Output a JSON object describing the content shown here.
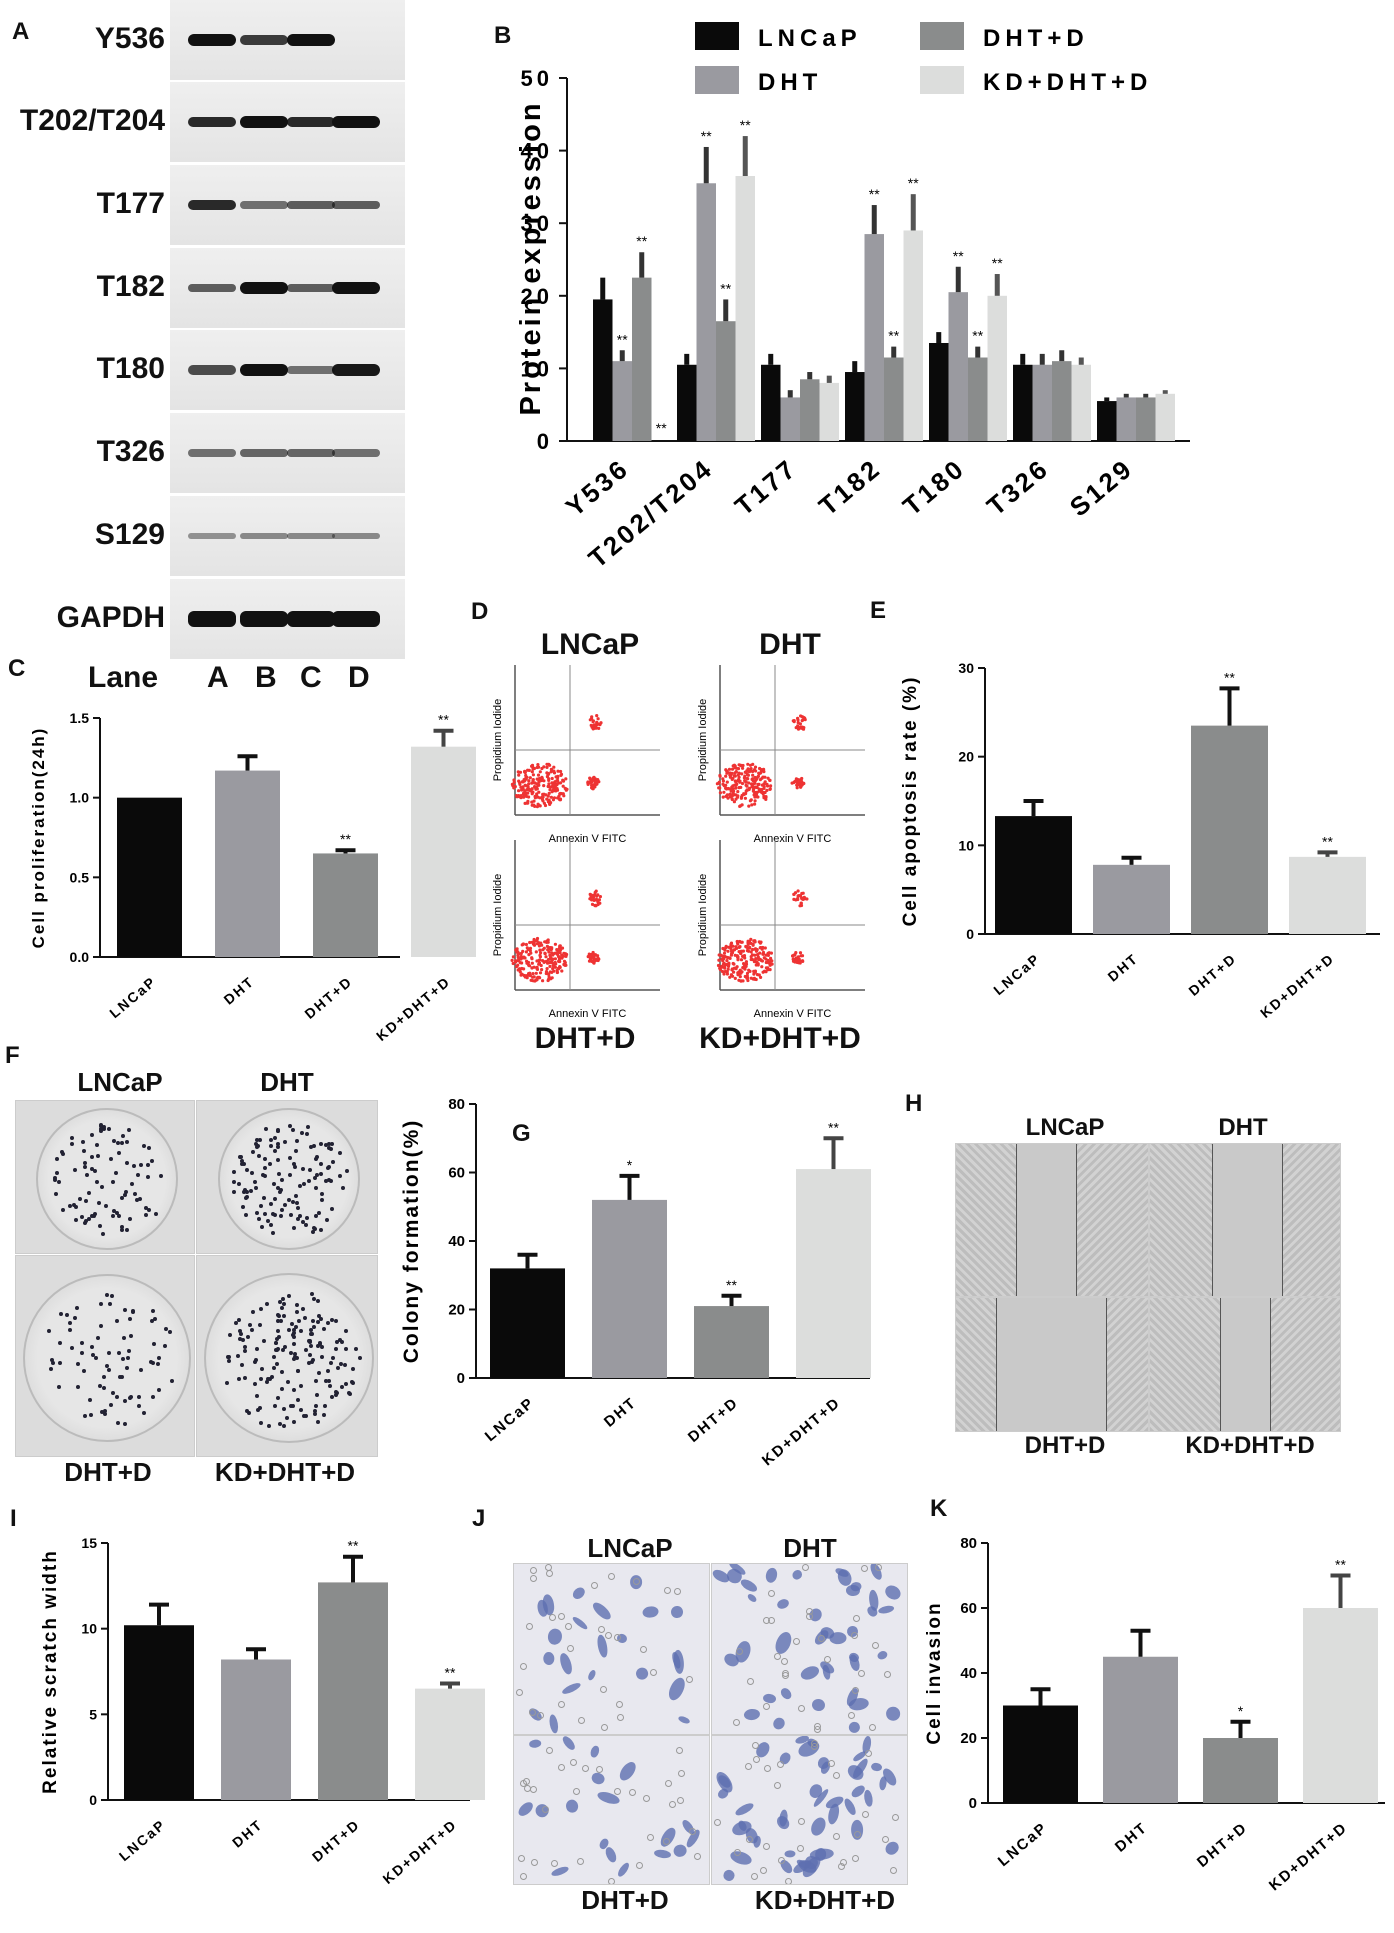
{
  "panels": {
    "A": "A",
    "B": "B",
    "C": "C",
    "D": "D",
    "E": "E",
    "F": "F",
    "G": "G",
    "H": "H",
    "I": "I",
    "J": "J",
    "K": "K"
  },
  "blot": {
    "rows": [
      "Y536",
      "T202/T204",
      "T177",
      "T182",
      "T180",
      "T326",
      "S129",
      "GAPDH"
    ],
    "lane_title": "Lane",
    "lanes": [
      "A",
      "B",
      "C",
      "D"
    ]
  },
  "legend": [
    "LNCaP",
    "DHT",
    "DHT+D",
    "KD+DHT+D"
  ],
  "colors": {
    "LNCaP": "#0a0a0a",
    "DHT": "#9a9aa0",
    "DHT+D": "#8a8c8c",
    "KD+DHT+D": "#dcdddc"
  },
  "flow": {
    "labels": [
      "LNCaP",
      "DHT",
      "DHT+D",
      "KD+DHT+D"
    ],
    "ylabel": "Propidium Iodide",
    "xlabel": "Annexin V  FITC"
  },
  "colony_labels": [
    "LNCaP",
    "DHT",
    "DHT+D",
    "KD+DHT+D"
  ],
  "scratch_labels": [
    "LNCaP",
    "DHT",
    "DHT+D",
    "KD+DHT+D"
  ],
  "invasion_labels": [
    "LNCaP",
    "DHT",
    "DHT+D",
    "KD+DHT+D"
  ],
  "chart_data": [
    {
      "id": "B",
      "type": "bar",
      "ylabel": "Protein expression",
      "ylim": [
        0,
        50
      ],
      "yticks": [
        0,
        10,
        20,
        30,
        40,
        50
      ],
      "categories": [
        "Y536",
        "T202/T204",
        "T177",
        "T182",
        "T180",
        "T326",
        "S129"
      ],
      "legend_position": "top",
      "series": [
        {
          "name": "LNCaP",
          "values": [
            19.5,
            10.5,
            10.5,
            9.5,
            13.5,
            10.5,
            5.5
          ],
          "errors": [
            3,
            1.5,
            1.5,
            1.5,
            1.5,
            1.5,
            0.5
          ],
          "sig": [
            "",
            "",
            "",
            "",
            "",
            "",
            ""
          ]
        },
        {
          "name": "DHT",
          "values": [
            11,
            35.5,
            6,
            28.5,
            20.5,
            10.5,
            6
          ],
          "errors": [
            1.5,
            5,
            1,
            4,
            3.5,
            1.5,
            0.5
          ],
          "sig": [
            "**",
            "**",
            "",
            "**",
            "**",
            "",
            ""
          ]
        },
        {
          "name": "DHT+D",
          "values": [
            22.5,
            16.5,
            8.5,
            11.5,
            11.5,
            11,
            6
          ],
          "errors": [
            3.5,
            3,
            1,
            1.5,
            1.5,
            1.5,
            0.5
          ],
          "sig": [
            "**",
            "**",
            "",
            "**",
            "**",
            "",
            ""
          ]
        },
        {
          "name": "KD+DHT+D",
          "values": [
            0,
            36.5,
            8,
            29,
            20,
            10.5,
            6.5
          ],
          "errors": [
            0,
            5.5,
            1,
            5,
            3,
            1,
            0.5
          ],
          "sig": [
            "**",
            "**",
            "",
            "**",
            "**",
            "",
            ""
          ]
        }
      ]
    },
    {
      "id": "C",
      "type": "bar",
      "ylabel": "Cell proliferation(24h)",
      "ylim": [
        0,
        1.5
      ],
      "yticks": [
        "0.0",
        "0.5",
        "1.0",
        "1.5"
      ],
      "categories": [
        "LNCaP",
        "DHT",
        "DHT+D",
        "KD+DHT+D"
      ],
      "values": [
        1.0,
        1.17,
        0.65,
        1.32
      ],
      "errors": [
        0,
        0.09,
        0.02,
        0.1
      ],
      "sig": [
        "",
        "",
        "**",
        "**"
      ]
    },
    {
      "id": "E",
      "type": "bar",
      "ylabel": "Cell apoptosis rate (%)",
      "ylim": [
        0,
        30
      ],
      "yticks": [
        "0",
        "10",
        "20",
        "30"
      ],
      "categories": [
        "LNCaP",
        "DHT",
        "DHT+D",
        "KD+DHT+D"
      ],
      "values": [
        13.3,
        7.8,
        23.5,
        8.7
      ],
      "errors": [
        1.7,
        0.8,
        4.2,
        0.5
      ],
      "sig": [
        "",
        "",
        "**",
        "**"
      ]
    },
    {
      "id": "G",
      "type": "bar",
      "ylabel": "Colony formation(%)",
      "ylim": [
        0,
        80
      ],
      "yticks": [
        "0",
        "20",
        "40",
        "60",
        "80"
      ],
      "categories": [
        "LNCaP",
        "DHT",
        "DHT+D",
        "KD+DHT+D"
      ],
      "values": [
        32,
        52,
        21,
        61
      ],
      "errors": [
        4,
        7,
        3,
        9
      ],
      "sig": [
        "",
        "*",
        "**",
        "**"
      ]
    },
    {
      "id": "I",
      "type": "bar",
      "ylabel": "Relative scratch width",
      "ylim": [
        0,
        15
      ],
      "yticks": [
        "0",
        "5",
        "10",
        "15"
      ],
      "categories": [
        "LNCaP",
        "DHT",
        "DHT+D",
        "KD+DHT+D"
      ],
      "values": [
        10.2,
        8.2,
        12.7,
        6.5
      ],
      "errors": [
        1.2,
        0.6,
        1.5,
        0.3
      ],
      "sig": [
        "",
        "",
        "**",
        "**"
      ]
    },
    {
      "id": "K",
      "type": "bar",
      "ylabel": "Cell invasion",
      "ylim": [
        0,
        80
      ],
      "yticks": [
        "0",
        "20",
        "40",
        "60",
        "80"
      ],
      "categories": [
        "LNCaP",
        "DHT",
        "DHT+D",
        "KD+DHT+D"
      ],
      "values": [
        30,
        45,
        20,
        60
      ],
      "errors": [
        5,
        8,
        5,
        10
      ],
      "sig": [
        "",
        "",
        "*",
        "**"
      ]
    }
  ]
}
